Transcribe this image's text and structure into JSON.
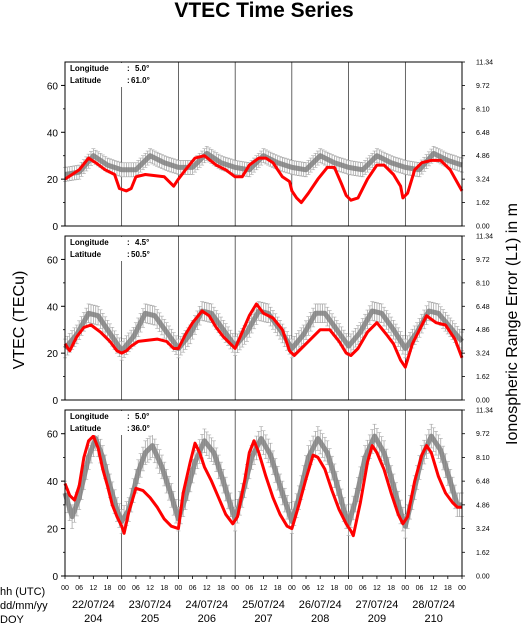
{
  "chart_data": {
    "type": "line",
    "title": "VTEC Time Series",
    "ylabel": "VTEC (TECu)",
    "ylabel_right": "Ionospheric Range Error (L1) in m",
    "ylim": [
      0,
      70
    ],
    "yticks": [
      "0",
      "20",
      "40",
      "60"
    ],
    "right_ticks": [
      "0.00",
      "1.62",
      "3.24",
      "4.86",
      "6.48",
      "8.10",
      "9.72",
      "11.34"
    ],
    "hour_ticks": [
      "00",
      "06",
      "12",
      "18"
    ],
    "row_labels": [
      "hh (UTC)",
      "dd/mm/yy",
      "DOY"
    ],
    "days": [
      {
        "date": "22/07/24",
        "doy": "204"
      },
      {
        "date": "23/07/24",
        "doy": "205"
      },
      {
        "date": "24/07/24",
        "doy": "206"
      },
      {
        "date": "25/07/24",
        "doy": "207"
      },
      {
        "date": "26/07/24",
        "doy": "208"
      },
      {
        "date": "27/07/24",
        "doy": "209"
      },
      {
        "date": "28/07/24",
        "doy": "210"
      }
    ],
    "series_colors": {
      "observed": "#ff0000",
      "reference": "#808080",
      "errorbar": "#a8a8a8"
    },
    "panels": [
      {
        "lon_label": "Longitude",
        "lon": "5.0°",
        "lat_label": "Latitude",
        "lat": "61.0°",
        "reference_points": [
          [
            0,
            22
          ],
          [
            6,
            23
          ],
          [
            12,
            30
          ],
          [
            18,
            26
          ],
          [
            24,
            24
          ],
          [
            30,
            24
          ],
          [
            36,
            30
          ],
          [
            42,
            27
          ],
          [
            48,
            25
          ],
          [
            54,
            25
          ],
          [
            60,
            31
          ],
          [
            66,
            27
          ],
          [
            72,
            25
          ],
          [
            78,
            24
          ],
          [
            84,
            30
          ],
          [
            90,
            27
          ],
          [
            96,
            25
          ],
          [
            102,
            24
          ],
          [
            108,
            30
          ],
          [
            114,
            27
          ],
          [
            120,
            25
          ],
          [
            126,
            24
          ],
          [
            132,
            30
          ],
          [
            138,
            27
          ],
          [
            144,
            25
          ],
          [
            150,
            24
          ],
          [
            156,
            31
          ],
          [
            162,
            28
          ],
          [
            168,
            26
          ]
        ],
        "reference_error": 3,
        "observed_points": [
          [
            0,
            20
          ],
          [
            3,
            22
          ],
          [
            6,
            24
          ],
          [
            10,
            29
          ],
          [
            13,
            27
          ],
          [
            17,
            24
          ],
          [
            21,
            22
          ],
          [
            23,
            16
          ],
          [
            26,
            15
          ],
          [
            28,
            16
          ],
          [
            30,
            21
          ],
          [
            34,
            22
          ],
          [
            38,
            21.5
          ],
          [
            42,
            21
          ],
          [
            46,
            17
          ],
          [
            48,
            20
          ],
          [
            51,
            24
          ],
          [
            55,
            29
          ],
          [
            59,
            30
          ],
          [
            64,
            26
          ],
          [
            68,
            24
          ],
          [
            72,
            21
          ],
          [
            75,
            21
          ],
          [
            78,
            26
          ],
          [
            82,
            29
          ],
          [
            85,
            29
          ],
          [
            88,
            27
          ],
          [
            92,
            21
          ],
          [
            95,
            19
          ],
          [
            96,
            15
          ],
          [
            98,
            12
          ],
          [
            100,
            10
          ],
          [
            103,
            14
          ],
          [
            107,
            20
          ],
          [
            111,
            25
          ],
          [
            114,
            25
          ],
          [
            117,
            18
          ],
          [
            119,
            13
          ],
          [
            121,
            11
          ],
          [
            124,
            12
          ],
          [
            128,
            20
          ],
          [
            132,
            26
          ],
          [
            135,
            26
          ],
          [
            139,
            22
          ],
          [
            142,
            17
          ],
          [
            143,
            12
          ],
          [
            145,
            14
          ],
          [
            148,
            24
          ],
          [
            151,
            27
          ],
          [
            155,
            28
          ],
          [
            159,
            28
          ],
          [
            163,
            24
          ],
          [
            168,
            15
          ]
        ]
      },
      {
        "lon_label": "Longitude",
        "lon": "4.5°",
        "lat_label": "Latitude",
        "lat": "50.5°",
        "reference_points": [
          [
            0,
            22
          ],
          [
            5,
            28
          ],
          [
            10,
            37
          ],
          [
            14,
            36
          ],
          [
            18,
            30
          ],
          [
            22,
            24
          ],
          [
            24,
            21
          ],
          [
            29,
            27
          ],
          [
            34,
            37
          ],
          [
            38,
            36
          ],
          [
            43,
            29
          ],
          [
            48,
            22
          ],
          [
            53,
            28
          ],
          [
            58,
            38
          ],
          [
            62,
            37
          ],
          [
            67,
            30
          ],
          [
            72,
            23
          ],
          [
            77,
            29
          ],
          [
            82,
            38
          ],
          [
            86,
            37
          ],
          [
            91,
            30
          ],
          [
            96,
            22
          ],
          [
            101,
            28
          ],
          [
            106,
            37
          ],
          [
            110,
            37
          ],
          [
            115,
            30
          ],
          [
            120,
            23
          ],
          [
            125,
            29
          ],
          [
            130,
            38
          ],
          [
            134,
            37
          ],
          [
            139,
            30
          ],
          [
            144,
            22
          ],
          [
            149,
            29
          ],
          [
            154,
            38
          ],
          [
            158,
            37
          ],
          [
            163,
            31
          ],
          [
            168,
            25
          ]
        ],
        "reference_error": 4,
        "observed_points": [
          [
            0,
            24
          ],
          [
            2,
            21
          ],
          [
            5,
            27
          ],
          [
            8,
            31
          ],
          [
            11,
            32
          ],
          [
            15,
            29
          ],
          [
            19,
            25
          ],
          [
            22,
            21
          ],
          [
            24,
            20
          ],
          [
            26,
            21
          ],
          [
            28,
            23
          ],
          [
            31,
            25
          ],
          [
            35,
            25.5
          ],
          [
            39,
            26
          ],
          [
            43,
            25
          ],
          [
            46,
            22
          ],
          [
            48,
            22
          ],
          [
            51,
            28
          ],
          [
            54,
            33
          ],
          [
            58,
            38
          ],
          [
            61,
            36
          ],
          [
            64,
            31
          ],
          [
            67,
            27
          ],
          [
            70,
            24
          ],
          [
            72,
            22
          ],
          [
            75,
            29
          ],
          [
            78,
            36
          ],
          [
            81,
            41
          ],
          [
            84,
            37
          ],
          [
            88,
            35
          ],
          [
            92,
            30
          ],
          [
            95,
            21
          ],
          [
            97,
            19
          ],
          [
            100,
            22
          ],
          [
            104,
            26
          ],
          [
            108,
            30
          ],
          [
            112,
            30
          ],
          [
            116,
            25
          ],
          [
            119,
            20
          ],
          [
            121,
            19
          ],
          [
            124,
            22
          ],
          [
            128,
            29
          ],
          [
            132,
            33
          ],
          [
            136,
            28
          ],
          [
            139,
            24
          ],
          [
            142,
            17
          ],
          [
            144,
            14
          ],
          [
            147,
            24
          ],
          [
            150,
            30
          ],
          [
            153,
            36
          ],
          [
            157,
            33
          ],
          [
            161,
            32
          ],
          [
            165,
            26
          ],
          [
            168,
            18
          ]
        ]
      },
      {
        "lon_label": "Longitude",
        "lon": "5.0°",
        "lat_label": "Latitude",
        "lat": "36.0°",
        "reference_points": [
          [
            0,
            35
          ],
          [
            3,
            25
          ],
          [
            6,
            33
          ],
          [
            10,
            50
          ],
          [
            13,
            58
          ],
          [
            16,
            50
          ],
          [
            19,
            38
          ],
          [
            22,
            28
          ],
          [
            24,
            23
          ],
          [
            27,
            28
          ],
          [
            31,
            44
          ],
          [
            34,
            52
          ],
          [
            37,
            55
          ],
          [
            41,
            46
          ],
          [
            45,
            34
          ],
          [
            48,
            24
          ],
          [
            51,
            33
          ],
          [
            55,
            48
          ],
          [
            59,
            57
          ],
          [
            63,
            52
          ],
          [
            67,
            40
          ],
          [
            70,
            30
          ],
          [
            72,
            24
          ],
          [
            75,
            34
          ],
          [
            79,
            50
          ],
          [
            83,
            58
          ],
          [
            87,
            51
          ],
          [
            91,
            38
          ],
          [
            94,
            29
          ],
          [
            96,
            23
          ],
          [
            99,
            33
          ],
          [
            103,
            50
          ],
          [
            107,
            58
          ],
          [
            111,
            52
          ],
          [
            115,
            39
          ],
          [
            118,
            28
          ],
          [
            120,
            22
          ],
          [
            123,
            32
          ],
          [
            127,
            50
          ],
          [
            131,
            59
          ],
          [
            135,
            52
          ],
          [
            139,
            38
          ],
          [
            142,
            27
          ],
          [
            144,
            21
          ],
          [
            147,
            33
          ],
          [
            151,
            50
          ],
          [
            155,
            59
          ],
          [
            159,
            53
          ],
          [
            163,
            40
          ],
          [
            166,
            30
          ],
          [
            168,
            30
          ]
        ],
        "reference_error": 5,
        "observed_points": [
          [
            0,
            39
          ],
          [
            2,
            34
          ],
          [
            4,
            32
          ],
          [
            6,
            38
          ],
          [
            8,
            50
          ],
          [
            10,
            57
          ],
          [
            12,
            59
          ],
          [
            14,
            54
          ],
          [
            16,
            45
          ],
          [
            18,
            38
          ],
          [
            20,
            30
          ],
          [
            22,
            25
          ],
          [
            24,
            21
          ],
          [
            25,
            18
          ],
          [
            27,
            27
          ],
          [
            30,
            37
          ],
          [
            33,
            36
          ],
          [
            36,
            33
          ],
          [
            39,
            29
          ],
          [
            42,
            24
          ],
          [
            45,
            21
          ],
          [
            48,
            20
          ],
          [
            50,
            35
          ],
          [
            53,
            48
          ],
          [
            55,
            56
          ],
          [
            57,
            52
          ],
          [
            59,
            46
          ],
          [
            62,
            40
          ],
          [
            65,
            33
          ],
          [
            68,
            26
          ],
          [
            71,
            22
          ],
          [
            73,
            25
          ],
          [
            76,
            40
          ],
          [
            78,
            52
          ],
          [
            80,
            57
          ],
          [
            82,
            52
          ],
          [
            85,
            42
          ],
          [
            88,
            33
          ],
          [
            91,
            26
          ],
          [
            94,
            21
          ],
          [
            96,
            20
          ],
          [
            99,
            30
          ],
          [
            102,
            41
          ],
          [
            105,
            51
          ],
          [
            107,
            50
          ],
          [
            110,
            45
          ],
          [
            113,
            36
          ],
          [
            116,
            28
          ],
          [
            119,
            22
          ],
          [
            121,
            19
          ],
          [
            122,
            17
          ],
          [
            125,
            31
          ],
          [
            128,
            48
          ],
          [
            130,
            55
          ],
          [
            132,
            52
          ],
          [
            135,
            45
          ],
          [
            138,
            35
          ],
          [
            141,
            26
          ],
          [
            143,
            22
          ],
          [
            145,
            25
          ],
          [
            148,
            40
          ],
          [
            151,
            51
          ],
          [
            153,
            55
          ],
          [
            155,
            52
          ],
          [
            158,
            42
          ],
          [
            161,
            35
          ],
          [
            164,
            31
          ],
          [
            166,
            29
          ],
          [
            168,
            29
          ]
        ]
      }
    ]
  }
}
